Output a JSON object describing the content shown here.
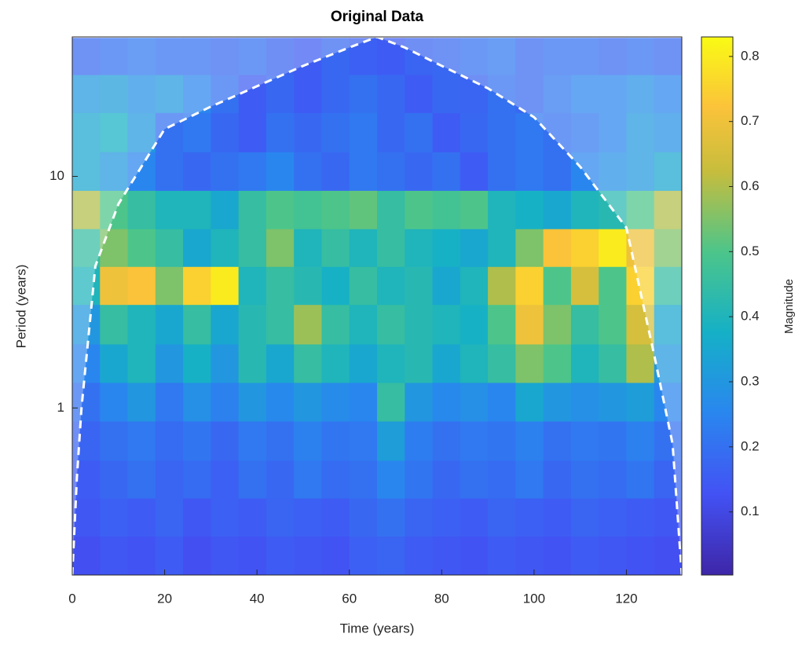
{
  "chart_data": {
    "type": "heatmap",
    "title": "Original Data",
    "xlabel": "Time (years)",
    "ylabel": "Period (years)",
    "colorbar_label": "Magnitude",
    "x": [
      3,
      9,
      15,
      21,
      27,
      33,
      39,
      45,
      51,
      57,
      63,
      69,
      75,
      81,
      87,
      93,
      99,
      105,
      111,
      117,
      123,
      129
    ],
    "y": [
      0.23,
      0.34,
      0.49,
      0.72,
      1.07,
      1.55,
      2.3,
      3.4,
      4.9,
      7.2,
      10.5,
      15.5,
      22.9,
      33
    ],
    "values": [
      [
        0.12,
        0.14,
        0.13,
        0.15,
        0.12,
        0.14,
        0.13,
        0.15,
        0.14,
        0.13,
        0.16,
        0.17,
        0.15,
        0.14,
        0.13,
        0.15,
        0.14,
        0.13,
        0.15,
        0.14,
        0.13,
        0.12
      ],
      [
        0.14,
        0.16,
        0.15,
        0.17,
        0.14,
        0.16,
        0.15,
        0.17,
        0.16,
        0.15,
        0.18,
        0.2,
        0.17,
        0.16,
        0.15,
        0.17,
        0.16,
        0.15,
        0.17,
        0.16,
        0.15,
        0.14
      ],
      [
        0.15,
        0.18,
        0.2,
        0.17,
        0.19,
        0.16,
        0.2,
        0.18,
        0.22,
        0.19,
        0.2,
        0.25,
        0.21,
        0.18,
        0.2,
        0.19,
        0.22,
        0.18,
        0.2,
        0.19,
        0.21,
        0.17
      ],
      [
        0.17,
        0.2,
        0.22,
        0.19,
        0.21,
        0.18,
        0.22,
        0.2,
        0.24,
        0.21,
        0.22,
        0.32,
        0.23,
        0.2,
        0.22,
        0.21,
        0.24,
        0.2,
        0.22,
        0.21,
        0.24,
        0.2
      ],
      [
        0.2,
        0.25,
        0.3,
        0.22,
        0.28,
        0.24,
        0.3,
        0.26,
        0.3,
        0.27,
        0.25,
        0.45,
        0.3,
        0.26,
        0.28,
        0.25,
        0.35,
        0.3,
        0.28,
        0.3,
        0.32,
        0.25
      ],
      [
        0.25,
        0.35,
        0.4,
        0.3,
        0.38,
        0.3,
        0.42,
        0.35,
        0.45,
        0.4,
        0.35,
        0.4,
        0.42,
        0.35,
        0.4,
        0.45,
        0.55,
        0.5,
        0.4,
        0.45,
        0.6,
        0.3
      ],
      [
        0.3,
        0.45,
        0.4,
        0.35,
        0.45,
        0.35,
        0.42,
        0.45,
        0.58,
        0.45,
        0.4,
        0.45,
        0.42,
        0.4,
        0.38,
        0.5,
        0.7,
        0.55,
        0.45,
        0.5,
        0.65,
        0.35
      ],
      [
        0.4,
        0.7,
        0.72,
        0.55,
        0.75,
        0.8,
        0.4,
        0.45,
        0.42,
        0.38,
        0.45,
        0.4,
        0.42,
        0.35,
        0.4,
        0.6,
        0.75,
        0.5,
        0.65,
        0.5,
        0.75,
        0.45
      ],
      [
        0.45,
        0.55,
        0.5,
        0.45,
        0.35,
        0.4,
        0.45,
        0.55,
        0.4,
        0.45,
        0.4,
        0.45,
        0.4,
        0.38,
        0.35,
        0.4,
        0.55,
        0.72,
        0.75,
        0.8,
        0.7,
        0.55
      ],
      [
        0.6,
        0.5,
        0.45,
        0.4,
        0.4,
        0.35,
        0.45,
        0.5,
        0.48,
        0.5,
        0.52,
        0.45,
        0.5,
        0.48,
        0.5,
        0.4,
        0.38,
        0.35,
        0.4,
        0.42,
        0.5,
        0.6
      ],
      [
        0.35,
        0.3,
        0.25,
        0.2,
        0.18,
        0.2,
        0.22,
        0.25,
        0.2,
        0.18,
        0.22,
        0.2,
        0.18,
        0.2,
        0.15,
        0.2,
        0.22,
        0.2,
        0.25,
        0.28,
        0.3,
        0.35
      ],
      [
        0.35,
        0.38,
        0.3,
        0.2,
        0.22,
        0.18,
        0.15,
        0.2,
        0.18,
        0.2,
        0.22,
        0.18,
        0.2,
        0.15,
        0.18,
        0.2,
        0.22,
        0.2,
        0.22,
        0.25,
        0.3,
        0.28
      ],
      [
        0.3,
        0.32,
        0.28,
        0.3,
        0.25,
        0.2,
        0.15,
        0.18,
        0.15,
        0.18,
        0.2,
        0.18,
        0.15,
        0.18,
        0.17,
        0.2,
        0.18,
        0.22,
        0.25,
        0.25,
        0.28,
        0.25
      ],
      [
        0.18,
        0.2,
        0.22,
        0.2,
        0.2,
        0.18,
        0.2,
        0.17,
        0.15,
        0.18,
        0.16,
        0.15,
        0.17,
        0.18,
        0.2,
        0.22,
        0.18,
        0.2,
        0.2,
        0.18,
        0.2,
        0.18
      ]
    ],
    "coi": {
      "x": [
        0,
        1,
        2,
        5,
        10,
        20,
        30,
        40,
        50,
        60,
        66,
        72,
        80,
        90,
        100,
        110,
        120,
        126,
        130,
        132
      ],
      "y": [
        0.19,
        0.5,
        1.0,
        4.1,
        7.6,
        16,
        20,
        24.5,
        30,
        36,
        40,
        36,
        30,
        24,
        18,
        11,
        6,
        1.7,
        0.7,
        0.19
      ]
    },
    "xlim": [
      0,
      132
    ],
    "ylim": [
      0.19,
      40
    ],
    "ylog": true,
    "xticks": [
      0,
      20,
      40,
      60,
      80,
      100,
      120
    ],
    "yticks": [
      1,
      10
    ],
    "clim": [
      0.003,
      0.83
    ],
    "cticks": [
      0.1,
      0.2,
      0.3,
      0.4,
      0.5,
      0.6,
      0.7,
      0.8
    ]
  }
}
